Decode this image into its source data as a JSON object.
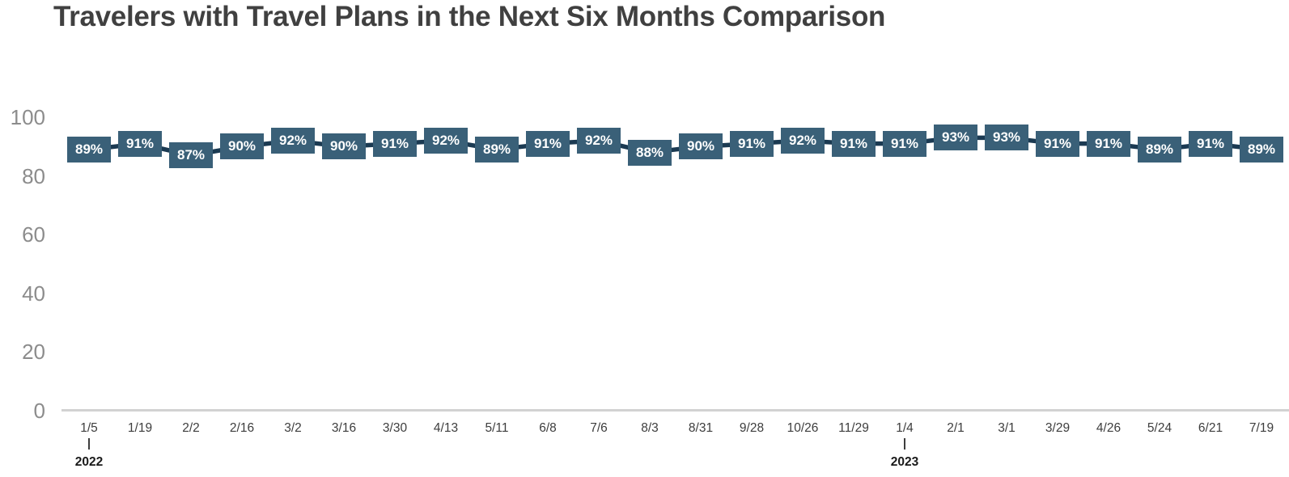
{
  "chart_data": {
    "type": "line",
    "title": "Travelers with Travel Plans in the Next Six Months Comparison",
    "xlabel": "",
    "ylabel": "",
    "ylim": [
      0,
      100
    ],
    "y_ticks": [
      0,
      20,
      40,
      60,
      80,
      100
    ],
    "grid": "off",
    "legend": "none",
    "categories": [
      "1/5",
      "1/19",
      "2/2",
      "2/16",
      "3/2",
      "3/16",
      "3/30",
      "4/13",
      "5/11",
      "6/8",
      "7/6",
      "8/3",
      "8/31",
      "9/28",
      "10/26",
      "11/29",
      "1/4",
      "2/1",
      "3/1",
      "3/29",
      "4/26",
      "5/24",
      "6/21",
      "7/19"
    ],
    "values": [
      89,
      91,
      87,
      90,
      92,
      90,
      91,
      92,
      89,
      91,
      92,
      88,
      90,
      91,
      92,
      91,
      91,
      93,
      93,
      91,
      91,
      89,
      91,
      89
    ],
    "data_labels": [
      "89%",
      "91%",
      "87%",
      "90%",
      "92%",
      "90%",
      "91%",
      "92%",
      "89%",
      "91%",
      "92%",
      "88%",
      "90%",
      "91%",
      "92%",
      "91%",
      "91%",
      "93%",
      "93%",
      "91%",
      "91%",
      "89%",
      "91%",
      "89%"
    ],
    "year_markers": [
      {
        "index": 0,
        "label": "2022"
      },
      {
        "index": 16,
        "label": "2023"
      }
    ],
    "colors": {
      "label_box_fill": "#3a6078",
      "label_text": "#ffffff",
      "line": "#1b3a52",
      "title_text": "#404040",
      "y_tick_text": "#8c8c8c",
      "x_tick_text": "#3d3d3d",
      "year_text": "#1a1a1a",
      "axis_line": "#d2d2d2",
      "background": "#ffffff"
    }
  }
}
